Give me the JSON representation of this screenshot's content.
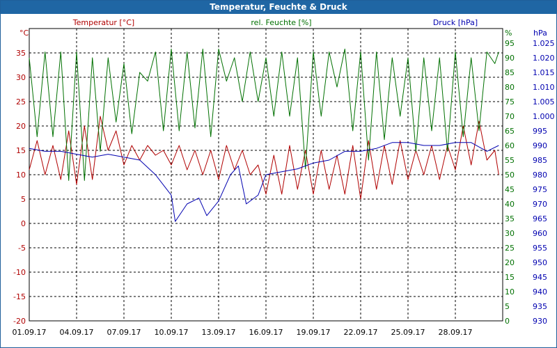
{
  "window": {
    "title": "Temperatur, Feuchte & Druck"
  },
  "colors": {
    "temperature": "#b00000",
    "humidity": "#007000",
    "pressure": "#0000b0",
    "grid": "#000000",
    "titlebar": "#1f66a4"
  },
  "chart_data": {
    "type": "line",
    "title": "Temperatur, Feuchte & Druck",
    "grid": true,
    "x_ticks": [
      "01.09.17",
      "04.09.17",
      "07.09.17",
      "10.09.17",
      "13.09.17",
      "16.09.17",
      "19.09.17",
      "22.09.17",
      "25.09.17",
      "28.09.17"
    ],
    "x_range_days": [
      0,
      30
    ],
    "axes": {
      "temperature": {
        "label": "Temperatur [°C]",
        "unit": "°C",
        "range": [
          -20,
          40
        ],
        "ticks": [
          -20,
          -15,
          -10,
          -5,
          0,
          5,
          10,
          15,
          20,
          25,
          30,
          35
        ]
      },
      "humidity": {
        "label": "rel. Feuchte [%]",
        "unit": "%",
        "range": [
          0,
          100
        ],
        "ticks": [
          0,
          5,
          10,
          15,
          20,
          25,
          30,
          35,
          40,
          45,
          50,
          55,
          60,
          65,
          70,
          75,
          80,
          85,
          90,
          95
        ]
      },
      "pressure": {
        "label": "Druck [hPa]",
        "unit": "hPa",
        "range": [
          930,
          1030
        ],
        "ticks": [
          930,
          935,
          940,
          945,
          950,
          955,
          960,
          965,
          970,
          975,
          980,
          985,
          990,
          995,
          1000,
          1005,
          1010,
          1015,
          1020,
          1025
        ]
      }
    },
    "series": [
      {
        "name": "Temperatur [°C]",
        "axis": "temperature",
        "color": "#b00000",
        "points": [
          [
            "01.09.17",
            11
          ],
          [
            "01.09.17 12:00",
            17
          ],
          [
            "02.09.17",
            10
          ],
          [
            "02.09.17 12:00",
            16
          ],
          [
            "03.09.17",
            9
          ],
          [
            "03.09.17 12:00",
            19
          ],
          [
            "04.09.17",
            8
          ],
          [
            "04.09.17 12:00",
            20
          ],
          [
            "05.09.17",
            9
          ],
          [
            "05.09.17 12:00",
            22
          ],
          [
            "06.09.17",
            15
          ],
          [
            "06.09.17 12:00",
            19
          ],
          [
            "07.09.17",
            12
          ],
          [
            "07.09.17 12:00",
            16
          ],
          [
            "08.09.17",
            13
          ],
          [
            "08.09.17 12:00",
            16
          ],
          [
            "09.09.17",
            14
          ],
          [
            "09.09.17 12:00",
            15
          ],
          [
            "10.09.17",
            12
          ],
          [
            "10.09.17 12:00",
            16
          ],
          [
            "11.09.17",
            11
          ],
          [
            "11.09.17 12:00",
            15
          ],
          [
            "12.09.17",
            10
          ],
          [
            "12.09.17 12:00",
            15
          ],
          [
            "13.09.17",
            9
          ],
          [
            "13.09.17 12:00",
            16
          ],
          [
            "14.09.17",
            11
          ],
          [
            "14.09.17 12:00",
            15
          ],
          [
            "15.09.17",
            10
          ],
          [
            "15.09.17 12:00",
            12
          ],
          [
            "16.09.17",
            6
          ],
          [
            "16.09.17 12:00",
            14
          ],
          [
            "17.09.17",
            6
          ],
          [
            "17.09.17 12:00",
            16
          ],
          [
            "18.09.17",
            7
          ],
          [
            "18.09.17 12:00",
            15
          ],
          [
            "19.09.17",
            6
          ],
          [
            "19.09.17 12:00",
            15
          ],
          [
            "20.09.17",
            7
          ],
          [
            "20.09.17 12:00",
            14
          ],
          [
            "21.09.17",
            6
          ],
          [
            "21.09.17 12:00",
            16
          ],
          [
            "22.09.17",
            5
          ],
          [
            "22.09.17 12:00",
            17
          ],
          [
            "23.09.17",
            7
          ],
          [
            "23.09.17 12:00",
            16
          ],
          [
            "24.09.17",
            8
          ],
          [
            "24.09.17 12:00",
            17
          ],
          [
            "25.09.17",
            9
          ],
          [
            "25.09.17 12:00",
            15
          ],
          [
            "26.09.17",
            10
          ],
          [
            "26.09.17 12:00",
            16
          ],
          [
            "27.09.17",
            9
          ],
          [
            "27.09.17 12:00",
            16
          ],
          [
            "28.09.17",
            11
          ],
          [
            "28.09.17 12:00",
            20
          ],
          [
            "29.09.17",
            12
          ],
          [
            "29.09.17 12:00",
            21
          ],
          [
            "30.09.17",
            13
          ],
          [
            "30.09.17 12:00",
            15
          ],
          [
            "30.09.17 18:00",
            10
          ]
        ]
      },
      {
        "name": "rel. Feuchte [%]",
        "axis": "humidity",
        "color": "#007000",
        "points": [
          [
            "01.09.17",
            90
          ],
          [
            "01.09.17 12:00",
            63
          ],
          [
            "02.09.17",
            92
          ],
          [
            "02.09.17 12:00",
            63
          ],
          [
            "03.09.17",
            92
          ],
          [
            "03.09.17 12:00",
            48
          ],
          [
            "04.09.17",
            92
          ],
          [
            "04.09.17 12:00",
            48
          ],
          [
            "05.09.17",
            90
          ],
          [
            "05.09.17 12:00",
            58
          ],
          [
            "06.09.17",
            90
          ],
          [
            "06.09.17 12:00",
            68
          ],
          [
            "07.09.17",
            88
          ],
          [
            "07.09.17 12:00",
            64
          ],
          [
            "08.09.17",
            85
          ],
          [
            "08.09.17 12:00",
            82
          ],
          [
            "09.09.17",
            92
          ],
          [
            "09.09.17 12:00",
            65
          ],
          [
            "10.09.17",
            93
          ],
          [
            "10.09.17 12:00",
            65
          ],
          [
            "11.09.17",
            92
          ],
          [
            "11.09.17 12:00",
            66
          ],
          [
            "12.09.17",
            93
          ],
          [
            "12.09.17 12:00",
            63
          ],
          [
            "13.09.17",
            93
          ],
          [
            "13.09.17 12:00",
            82
          ],
          [
            "14.09.17",
            90
          ],
          [
            "14.09.17 12:00",
            75
          ],
          [
            "15.09.17",
            92
          ],
          [
            "15.09.17 12:00",
            75
          ],
          [
            "16.09.17",
            90
          ],
          [
            "16.09.17 12:00",
            70
          ],
          [
            "17.09.17",
            92
          ],
          [
            "17.09.17 12:00",
            70
          ],
          [
            "18.09.17",
            90
          ],
          [
            "18.09.17 12:00",
            52
          ],
          [
            "19.09.17",
            92
          ],
          [
            "19.09.17 12:00",
            70
          ],
          [
            "20.09.17",
            92
          ],
          [
            "20.09.17 12:00",
            80
          ],
          [
            "21.09.17",
            93
          ],
          [
            "21.09.17 12:00",
            65
          ],
          [
            "22.09.17",
            92
          ],
          [
            "22.09.17 12:00",
            55
          ],
          [
            "23.09.17",
            92
          ],
          [
            "23.09.17 12:00",
            62
          ],
          [
            "24.09.17",
            90
          ],
          [
            "24.09.17 12:00",
            70
          ],
          [
            "25.09.17",
            90
          ],
          [
            "25.09.17 12:00",
            58
          ],
          [
            "26.09.17",
            90
          ],
          [
            "26.09.17 12:00",
            65
          ],
          [
            "27.09.17",
            90
          ],
          [
            "27.09.17 12:00",
            58
          ],
          [
            "28.09.17",
            92
          ],
          [
            "28.09.17 12:00",
            63
          ],
          [
            "29.09.17",
            90
          ],
          [
            "29.09.17 12:00",
            65
          ],
          [
            "30.09.17",
            92
          ],
          [
            "30.09.17 12:00",
            88
          ],
          [
            "30.09.17 18:00",
            92
          ]
        ]
      },
      {
        "name": "Druck [hPa]",
        "axis": "pressure",
        "color": "#0000b0",
        "points": [
          [
            "01.09.17",
            989
          ],
          [
            "02.09.17",
            988
          ],
          [
            "03.09.17",
            988
          ],
          [
            "04.09.17",
            987
          ],
          [
            "05.09.17",
            986
          ],
          [
            "06.09.17",
            987
          ],
          [
            "07.09.17",
            986
          ],
          [
            "08.09.17",
            985
          ],
          [
            "09.09.17",
            980
          ],
          [
            "10.09.17",
            973
          ],
          [
            "10.09.17 06:00",
            964
          ],
          [
            "11.09.17",
            970
          ],
          [
            "11.09.17 18:00",
            972
          ],
          [
            "12.09.17 06:00",
            966
          ],
          [
            "13.09.17",
            971
          ],
          [
            "13.09.17 18:00",
            980
          ],
          [
            "14.09.17 06:00",
            983
          ],
          [
            "14.09.17 18:00",
            970
          ],
          [
            "15.09.17 12:00",
            973
          ],
          [
            "16.09.17",
            980
          ],
          [
            "17.09.17",
            981
          ],
          [
            "18.09.17",
            982
          ],
          [
            "19.09.17",
            984
          ],
          [
            "20.09.17",
            985
          ],
          [
            "21.09.17",
            988
          ],
          [
            "22.09.17",
            988
          ],
          [
            "23.09.17",
            989
          ],
          [
            "24.09.17",
            991
          ],
          [
            "25.09.17",
            991
          ],
          [
            "26.09.17",
            990
          ],
          [
            "27.09.17",
            990
          ],
          [
            "28.09.17",
            991
          ],
          [
            "29.09.17",
            991
          ],
          [
            "30.09.17",
            988
          ],
          [
            "30.09.17 18:00",
            990
          ]
        ]
      }
    ]
  }
}
